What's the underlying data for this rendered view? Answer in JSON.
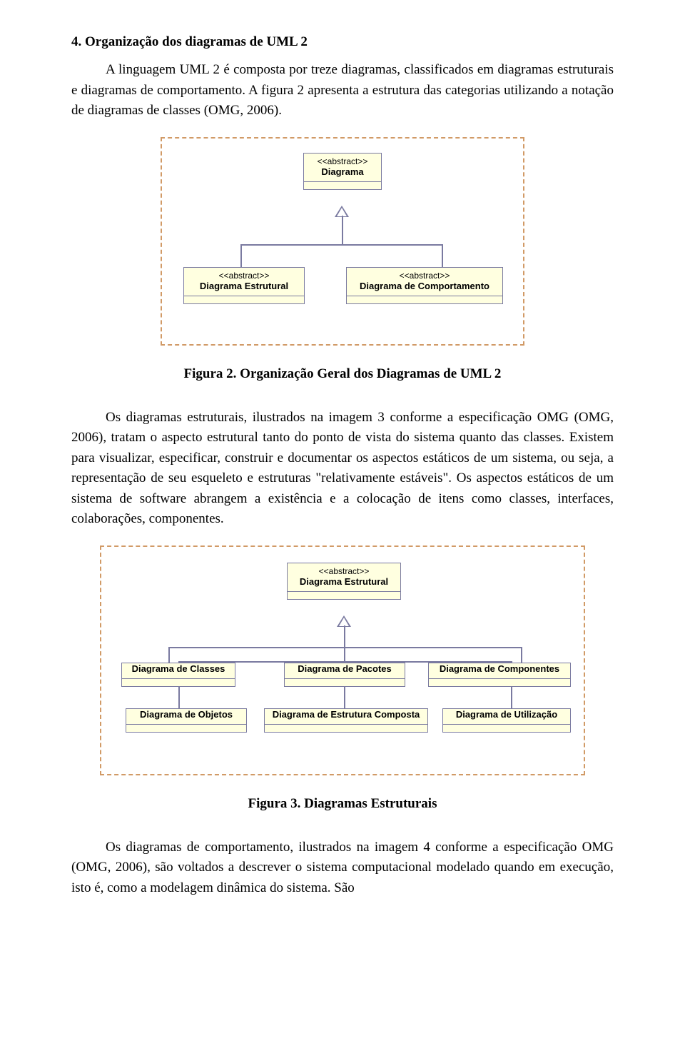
{
  "section": {
    "title": "4. Organização dos diagramas de UML 2"
  },
  "paragraphs": {
    "p1": "A linguagem UML 2 é composta por treze diagramas, classificados em diagramas estruturais e diagramas de comportamento. A figura 2 apresenta a estrutura das categorias utilizando a notação de diagramas de classes (OMG, 2006).",
    "p2": "Os diagramas estruturais, ilustrados na imagem 3 conforme a especificação OMG (OMG, 2006), tratam o aspecto estrutural tanto do ponto de vista do sistema quanto das classes. Existem para visualizar, especificar, construir e documentar os aspectos estáticos de um sistema, ou seja, a representação de seu esqueleto e estruturas \"relativamente estáveis\". Os aspectos estáticos de um sistema de software abrangem a existência e a colocação de itens como classes, interfaces, colaborações, componentes.",
    "p3": "Os diagramas de comportamento, ilustrados na imagem 4 conforme a especificação OMG (OMG, 2006), são voltados a descrever o sistema computacional modelado quando em execução, isto é, como a modelagem dinâmica do sistema. São"
  },
  "figures": {
    "fig2": {
      "caption": "Figura 2. Organização Geral dos Diagramas de UML 2",
      "frame_border_color": "#d19a66",
      "box_bg": "#ffffe0",
      "box_border": "#7a7aa0",
      "nodes": {
        "root": {
          "stereotype": "<<abstract>>",
          "name": "Diagrama"
        },
        "left": {
          "stereotype": "<<abstract>>",
          "name": "Diagrama Estrutural"
        },
        "right": {
          "stereotype": "<<abstract>>",
          "name": "Diagrama de Comportamento"
        }
      }
    },
    "fig3": {
      "caption": "Figura 3. Diagramas Estruturais",
      "frame_border_color": "#d19a66",
      "box_bg": "#ffffe0",
      "box_border": "#7a7aa0",
      "nodes": {
        "root": {
          "stereotype": "<<abstract>>",
          "name": "Diagrama Estrutural"
        },
        "r1a": {
          "name": "Diagrama de Classes"
        },
        "r1b": {
          "name": "Diagrama de Pacotes"
        },
        "r1c": {
          "name": "Diagrama de Componentes"
        },
        "r2a": {
          "name": "Diagrama de Objetos"
        },
        "r2b": {
          "name": "Diagrama de Estrutura Composta"
        },
        "r2c": {
          "name": "Diagrama de Utilização"
        }
      }
    }
  },
  "style": {
    "page_bg": "#ffffff",
    "text_color": "#000000",
    "body_fontsize_pt": 14,
    "title_fontsize_pt": 14,
    "uml_font": "Verdana"
  }
}
